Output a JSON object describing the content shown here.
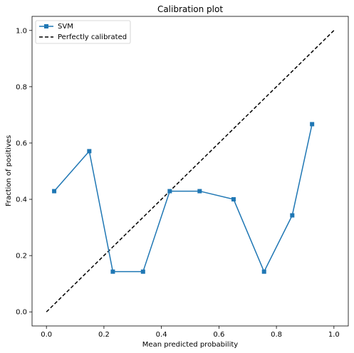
{
  "chart_data": {
    "type": "line",
    "title": "Calibration plot",
    "xlabel": "Mean predicted probability",
    "ylabel": "Fraction of positives",
    "xlim": [
      -0.05,
      1.05
    ],
    "ylim": [
      -0.05,
      1.05
    ],
    "xticks": [
      "0.0",
      "0.2",
      "0.4",
      "0.6",
      "0.8",
      "1.0"
    ],
    "yticks": [
      "0.0",
      "0.2",
      "0.4",
      "0.6",
      "0.8",
      "1.0"
    ],
    "grid": false,
    "legend_position": "top-left",
    "series": [
      {
        "name": "SVM",
        "color": "#1f77b4",
        "marker": "square",
        "x": [
          0.027,
          0.149,
          0.231,
          0.336,
          0.429,
          0.533,
          0.651,
          0.757,
          0.855,
          0.924
        ],
        "y": [
          0.429,
          0.571,
          0.143,
          0.143,
          0.429,
          0.429,
          0.4,
          0.143,
          0.343,
          0.667
        ]
      },
      {
        "name": "Perfectly calibrated",
        "color": "#000000",
        "style": "dashed",
        "x": [
          0,
          1
        ],
        "y": [
          0,
          1
        ]
      }
    ]
  }
}
